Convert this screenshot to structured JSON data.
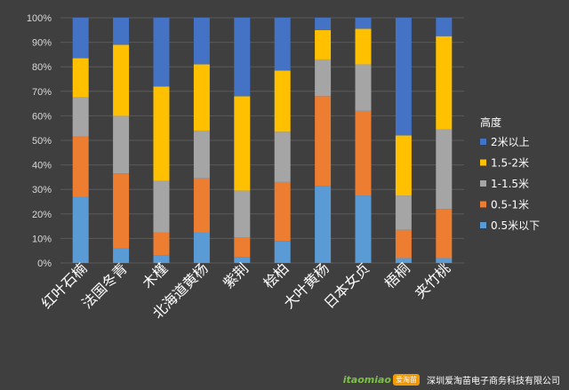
{
  "chart_data": {
    "type": "stacked-bar-100",
    "title": "",
    "categories": [
      "红叶石楠",
      "法国冬青",
      "木槿",
      "北海道黄杨",
      "紫荆",
      "桧柏",
      "大叶黄杨",
      "日本女贞",
      "梧桐",
      "夹竹桃"
    ],
    "ylim": [
      0,
      100
    ],
    "yticks": [
      "0%",
      "10%",
      "20%",
      "30%",
      "40%",
      "50%",
      "60%",
      "70%",
      "80%",
      "90%",
      "100%"
    ],
    "legend_title": "高度",
    "series": [
      {
        "name": "0.5米以下",
        "color": "#5b9bd5",
        "values": [
          27,
          6,
          3,
          12.5,
          2.5,
          9,
          31.5,
          27.5,
          2,
          2
        ]
      },
      {
        "name": "0.5-1米",
        "color": "#ed7d31",
        "values": [
          24.5,
          30.5,
          9.5,
          22,
          8,
          24,
          36.5,
          34.5,
          11.5,
          20
        ]
      },
      {
        "name": "1-1.5米",
        "color": "#a5a5a5",
        "values": [
          16,
          23.5,
          21,
          19.5,
          19,
          20.5,
          15,
          19,
          14,
          32.5
        ]
      },
      {
        "name": "1.5-2米",
        "color": "#ffc000",
        "values": [
          16,
          29,
          38.5,
          27,
          38.5,
          25,
          12,
          14.5,
          24.5,
          38
        ]
      },
      {
        "name": "2米以上",
        "color": "#4472c4",
        "values": [
          16.5,
          11,
          28,
          19,
          32,
          21.5,
          5,
          4.5,
          48,
          7.5
        ]
      }
    ]
  },
  "footer": {
    "logo_text": "itaomiao",
    "logo_badge": "爱淘苗",
    "company": "深圳爱淘苗电子商务科技有限公司"
  }
}
